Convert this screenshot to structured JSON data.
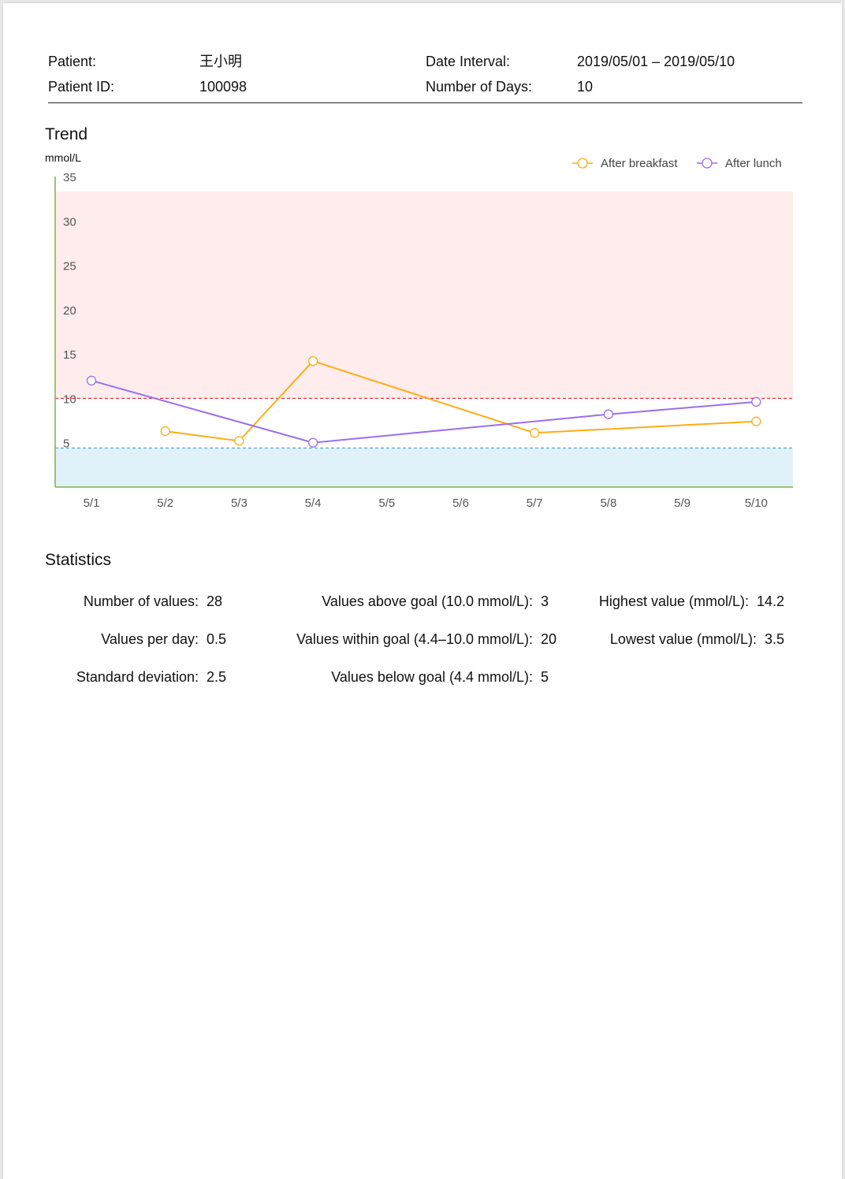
{
  "header": {
    "patient_label": "Patient:",
    "patient_value": "王小明",
    "patient_id_label": "Patient ID:",
    "patient_id_value": "100098",
    "date_interval_label": "Date Interval:",
    "date_interval_value": "2019/05/01 – 2019/05/10",
    "days_label": "Number of Days:",
    "days_value": "10"
  },
  "trend": {
    "title": "Trend",
    "unit": "mmol/L"
  },
  "chart_data": {
    "type": "line",
    "title": "Trend",
    "xlabel": "",
    "ylabel": "mmol/L",
    "categories": [
      "5/1",
      "5/2",
      "5/3",
      "5/4",
      "5/5",
      "5/6",
      "5/7",
      "5/8",
      "5/9",
      "5/10"
    ],
    "ylim": [
      0,
      35
    ],
    "yticks": [
      5,
      10,
      15,
      20,
      25,
      30,
      35
    ],
    "grid": false,
    "legend_position": "top-right",
    "high_threshold": 10.0,
    "low_threshold": 4.4,
    "high_band_top": 33.3,
    "colors": {
      "high_band": "#ffecec",
      "low_band": "#e1f1f9",
      "high_line": "#f5222d",
      "low_line": "#5aa9b8",
      "axis": "#7cb342"
    },
    "series": [
      {
        "name": "After breakfast",
        "color": "#faad14",
        "values": [
          null,
          6.3,
          5.2,
          14.2,
          null,
          null,
          6.1,
          null,
          null,
          7.4
        ]
      },
      {
        "name": "After lunch",
        "color": "#9c6cf0",
        "values": [
          12.0,
          null,
          null,
          5.0,
          null,
          null,
          null,
          8.2,
          null,
          9.6
        ]
      }
    ]
  },
  "statistics": {
    "title": "Statistics",
    "items": [
      {
        "label": "Number of values:",
        "value": "28"
      },
      {
        "label": "Values per day:",
        "value": "0.5"
      },
      {
        "label": "Standard deviation:",
        "value": "2.5"
      },
      {
        "label": "Values above goal (10.0 mmol/L):",
        "value": "3"
      },
      {
        "label": "Values within goal (4.4–10.0 mmol/L):",
        "value": "20"
      },
      {
        "label": "Values below goal (4.4 mmol/L):",
        "value": "5"
      },
      {
        "label": "Highest value (mmol/L):",
        "value": "14.2"
      },
      {
        "label": "Lowest value (mmol/L):",
        "value": "3.5"
      }
    ]
  }
}
